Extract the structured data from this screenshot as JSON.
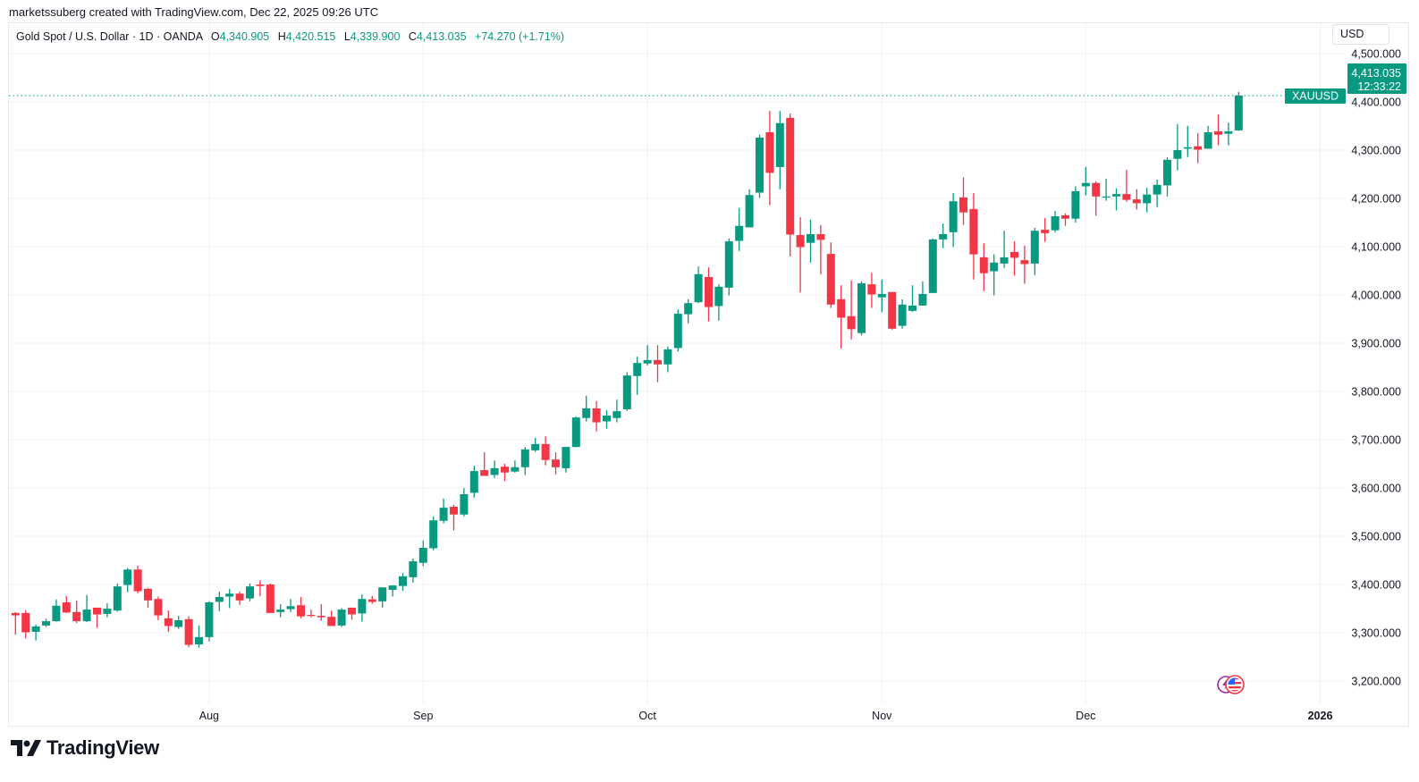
{
  "credit": "marketssuberg created with TradingView.com, Dec 22, 2025 09:26 UTC",
  "legend": {
    "symbol_desc": "Gold Spot / U.S. Dollar · 1D · OANDA",
    "o_label": "O",
    "o_value": "4,340.905",
    "h_label": "H",
    "h_value": "4,420.515",
    "l_label": "L",
    "l_value": "4,339.900",
    "c_label": "C",
    "c_value": "4,413.035",
    "change": "+74.270 (+1.71%)"
  },
  "currency_button": "USD",
  "last_price": {
    "symbol": "XAUUSD",
    "price": "4,413.035",
    "countdown": "12:33:22",
    "value": 4413.035
  },
  "logo_text": "TradingView",
  "colors": {
    "up": "#089981",
    "down": "#F23645",
    "grid": "#f0f0f3",
    "text": "#131722"
  },
  "icons": {
    "event_lightning": "lightning-icon",
    "event_flag": "us-flag-icon"
  },
  "chart_data": {
    "type": "candlestick",
    "title": "Gold Spot / U.S. Dollar · 1D · OANDA",
    "ylim": [
      3130,
      4520
    ],
    "grid": true,
    "y_ticks": [
      3200,
      3300,
      3400,
      3500,
      3600,
      3700,
      3800,
      3900,
      4000,
      4100,
      4200,
      4300,
      4400,
      4500
    ],
    "y_tick_labels": [
      "3,200.000",
      "3,300.000",
      "3,400.000",
      "3,500.000",
      "3,600.000",
      "3,700.000",
      "3,800.000",
      "3,900.000",
      "4,000.000",
      "4,100.000",
      "4,200.000",
      "4,300.000",
      "4,400.000",
      "4,500.000"
    ],
    "x_ticks": [
      {
        "label": "Aug",
        "date": "2025-08-01"
      },
      {
        "label": "Sep",
        "date": "2025-09-01"
      },
      {
        "label": "Oct",
        "date": "2025-10-01"
      },
      {
        "label": "Nov",
        "date": "2025-11-03"
      },
      {
        "label": "Dec",
        "date": "2025-12-01"
      },
      {
        "label": "2026",
        "date": "2026-01-01",
        "bold": true
      }
    ],
    "columns": [
      "date",
      "open",
      "high",
      "low",
      "close"
    ],
    "candles": [
      [
        "2025-07-07",
        3341,
        3343,
        3296,
        3336
      ],
      [
        "2025-07-08",
        3341,
        3346,
        3288,
        3301
      ],
      [
        "2025-07-09",
        3302,
        3317,
        3284,
        3313
      ],
      [
        "2025-07-10",
        3315,
        3329,
        3312,
        3324
      ],
      [
        "2025-07-11",
        3324,
        3369,
        3323,
        3356
      ],
      [
        "2025-07-14",
        3363,
        3376,
        3341,
        3342
      ],
      [
        "2025-07-15",
        3343,
        3367,
        3320,
        3324
      ],
      [
        "2025-07-16",
        3324,
        3378,
        3322,
        3348
      ],
      [
        "2025-07-17",
        3352,
        3352,
        3310,
        3338
      ],
      [
        "2025-07-18",
        3339,
        3361,
        3332,
        3350
      ],
      [
        "2025-07-21",
        3346,
        3402,
        3344,
        3396
      ],
      [
        "2025-07-22",
        3399,
        3434,
        3384,
        3431
      ],
      [
        "2025-07-23",
        3431,
        3439,
        3382,
        3386
      ],
      [
        "2025-07-24",
        3391,
        3393,
        3352,
        3367
      ],
      [
        "2025-07-25",
        3370,
        3375,
        3326,
        3336
      ],
      [
        "2025-07-28",
        3330,
        3346,
        3302,
        3314
      ],
      [
        "2025-07-29",
        3312,
        3335,
        3308,
        3326
      ],
      [
        "2025-07-30",
        3328,
        3334,
        3270,
        3275
      ],
      [
        "2025-07-31",
        3276,
        3315,
        3269,
        3291
      ],
      [
        "2025-08-01",
        3291,
        3365,
        3282,
        3363
      ],
      [
        "2025-08-04",
        3364,
        3385,
        3345,
        3374
      ],
      [
        "2025-08-05",
        3375,
        3391,
        3351,
        3381
      ],
      [
        "2025-08-06",
        3381,
        3385,
        3358,
        3367
      ],
      [
        "2025-08-07",
        3371,
        3402,
        3365,
        3396
      ],
      [
        "2025-08-08",
        3400,
        3409,
        3376,
        3397
      ],
      [
        "2025-08-11",
        3400,
        3402,
        3341,
        3341
      ],
      [
        "2025-08-12",
        3343,
        3359,
        3332,
        3348
      ],
      [
        "2025-08-13",
        3349,
        3370,
        3343,
        3355
      ],
      [
        "2025-08-14",
        3357,
        3374,
        3330,
        3334
      ],
      [
        "2025-08-15",
        3337,
        3348,
        3332,
        3335
      ],
      [
        "2025-08-18",
        3335,
        3359,
        3325,
        3332
      ],
      [
        "2025-08-19",
        3333,
        3346,
        3314,
        3314
      ],
      [
        "2025-08-20",
        3315,
        3351,
        3312,
        3348
      ],
      [
        "2025-08-21",
        3352,
        3352,
        3327,
        3338
      ],
      [
        "2025-08-22",
        3340,
        3380,
        3323,
        3370
      ],
      [
        "2025-08-25",
        3369,
        3376,
        3360,
        3364
      ],
      [
        "2025-08-26",
        3365,
        3394,
        3352,
        3394
      ],
      [
        "2025-08-27",
        3389,
        3398,
        3375,
        3398
      ],
      [
        "2025-08-28",
        3397,
        3424,
        3387,
        3417
      ],
      [
        "2025-08-29",
        3415,
        3454,
        3404,
        3448
      ],
      [
        "2025-09-01",
        3445,
        3491,
        3438,
        3476
      ],
      [
        "2025-09-02",
        3475,
        3541,
        3471,
        3533
      ],
      [
        "2025-09-03",
        3532,
        3578,
        3527,
        3559
      ],
      [
        "2025-09-04",
        3561,
        3565,
        3512,
        3545
      ],
      [
        "2025-09-05",
        3545,
        3600,
        3541,
        3587
      ],
      [
        "2025-09-08",
        3590,
        3646,
        3580,
        3635
      ],
      [
        "2025-09-09",
        3637,
        3674,
        3625,
        3625
      ],
      [
        "2025-09-10",
        3627,
        3657,
        3621,
        3641
      ],
      [
        "2025-09-11",
        3644,
        3650,
        3614,
        3632
      ],
      [
        "2025-09-12",
        3634,
        3657,
        3632,
        3643
      ],
      [
        "2025-09-15",
        3643,
        3685,
        3627,
        3680
      ],
      [
        "2025-09-16",
        3678,
        3704,
        3675,
        3691
      ],
      [
        "2025-09-17",
        3691,
        3707,
        3647,
        3658
      ],
      [
        "2025-09-18",
        3659,
        3674,
        3628,
        3643
      ],
      [
        "2025-09-19",
        3641,
        3685,
        3632,
        3685
      ],
      [
        "2025-09-22",
        3685,
        3748,
        3684,
        3746
      ],
      [
        "2025-09-23",
        3745,
        3791,
        3738,
        3765
      ],
      [
        "2025-09-24",
        3765,
        3780,
        3717,
        3736
      ],
      [
        "2025-09-25",
        3738,
        3761,
        3723,
        3750
      ],
      [
        "2025-09-26",
        3745,
        3783,
        3736,
        3759
      ],
      [
        "2025-09-29",
        3763,
        3840,
        3760,
        3833
      ],
      [
        "2025-09-30",
        3832,
        3872,
        3793,
        3859
      ],
      [
        "2025-10-01",
        3858,
        3896,
        3854,
        3865
      ],
      [
        "2025-10-02",
        3865,
        3896,
        3819,
        3856
      ],
      [
        "2025-10-03",
        3856,
        3893,
        3840,
        3887
      ],
      [
        "2025-10-06",
        3890,
        3970,
        3883,
        3961
      ],
      [
        "2025-10-07",
        3960,
        3991,
        3941,
        3983
      ],
      [
        "2025-10-08",
        3985,
        4059,
        3983,
        4043
      ],
      [
        "2025-10-09",
        4037,
        4057,
        3945,
        3975
      ],
      [
        "2025-10-10",
        3977,
        4022,
        3947,
        4017
      ],
      [
        "2025-10-13",
        4015,
        4117,
        3999,
        4111
      ],
      [
        "2025-10-14",
        4112,
        4180,
        4091,
        4143
      ],
      [
        "2025-10-15",
        4140,
        4219,
        4140,
        4207
      ],
      [
        "2025-10-16",
        4212,
        4332,
        4201,
        4326
      ],
      [
        "2025-10-17",
        4337,
        4381,
        4186,
        4253
      ],
      [
        "2025-10-20",
        4265,
        4381,
        4219,
        4356
      ],
      [
        "2025-10-21",
        4367,
        4376,
        4080,
        4125
      ],
      [
        "2025-10-22",
        4124,
        4161,
        4005,
        4099
      ],
      [
        "2025-10-23",
        4108,
        4156,
        4067,
        4126
      ],
      [
        "2025-10-24",
        4126,
        4145,
        4043,
        4114
      ],
      [
        "2025-10-27",
        4085,
        4109,
        3973,
        3980
      ],
      [
        "2025-10-28",
        3991,
        4020,
        3889,
        3953
      ],
      [
        "2025-10-29",
        3956,
        4030,
        3908,
        3929
      ],
      [
        "2025-10-30",
        3921,
        4028,
        3916,
        4024
      ],
      [
        "2025-10-31",
        4022,
        4046,
        3973,
        4001
      ],
      [
        "2025-11-03",
        3995,
        4032,
        3964,
        4002
      ],
      [
        "2025-11-04",
        4006,
        4006,
        3928,
        3930
      ],
      [
        "2025-11-05",
        3936,
        3991,
        3930,
        3980
      ],
      [
        "2025-11-06",
        3967,
        4020,
        3965,
        3978
      ],
      [
        "2025-11-07",
        3978,
        4028,
        3978,
        4002
      ],
      [
        "2025-11-10",
        4004,
        4117,
        4004,
        4115
      ],
      [
        "2025-11-11",
        4115,
        4148,
        4097,
        4126
      ],
      [
        "2025-11-12",
        4130,
        4211,
        4099,
        4194
      ],
      [
        "2025-11-13",
        4202,
        4244,
        4145,
        4171
      ],
      [
        "2025-11-14",
        4178,
        4211,
        4032,
        4084
      ],
      [
        "2025-11-17",
        4078,
        4107,
        4008,
        4045
      ],
      [
        "2025-11-18",
        4049,
        4084,
        3999,
        4067
      ],
      [
        "2025-11-19",
        4065,
        4133,
        4056,
        4078
      ],
      [
        "2025-11-20",
        4089,
        4111,
        4040,
        4077
      ],
      [
        "2025-11-21",
        4072,
        4102,
        4023,
        4064
      ],
      [
        "2025-11-24",
        4065,
        4139,
        4041,
        4133
      ],
      [
        "2025-11-25",
        4135,
        4159,
        4110,
        4128
      ],
      [
        "2025-11-26",
        4134,
        4174,
        4130,
        4163
      ],
      [
        "2025-11-27",
        4165,
        4169,
        4143,
        4158
      ],
      [
        "2025-11-28",
        4158,
        4225,
        4150,
        4215
      ],
      [
        "2025-12-01",
        4225,
        4265,
        4206,
        4232
      ],
      [
        "2025-12-02",
        4232,
        4235,
        4164,
        4204
      ],
      [
        "2025-12-03",
        4203,
        4241,
        4195,
        4204
      ],
      [
        "2025-12-04",
        4204,
        4221,
        4175,
        4209
      ],
      [
        "2025-12-05",
        4209,
        4259,
        4193,
        4197
      ],
      [
        "2025-12-08",
        4198,
        4219,
        4177,
        4190
      ],
      [
        "2025-12-09",
        4190,
        4222,
        4171,
        4208
      ],
      [
        "2025-12-10",
        4208,
        4239,
        4182,
        4228
      ],
      [
        "2025-12-11",
        4227,
        4285,
        4204,
        4280
      ],
      [
        "2025-12-12",
        4282,
        4354,
        4258,
        4300
      ],
      [
        "2025-12-15",
        4303,
        4350,
        4286,
        4306
      ],
      [
        "2025-12-16",
        4308,
        4335,
        4273,
        4301
      ],
      [
        "2025-12-17",
        4303,
        4350,
        4303,
        4337
      ],
      [
        "2025-12-18",
        4339,
        4374,
        4310,
        4332
      ],
      [
        "2025-12-19",
        4334,
        4357,
        4310,
        4339
      ],
      [
        "2025-12-22",
        4340.905,
        4420.515,
        4339.9,
        4413.035
      ]
    ]
  }
}
